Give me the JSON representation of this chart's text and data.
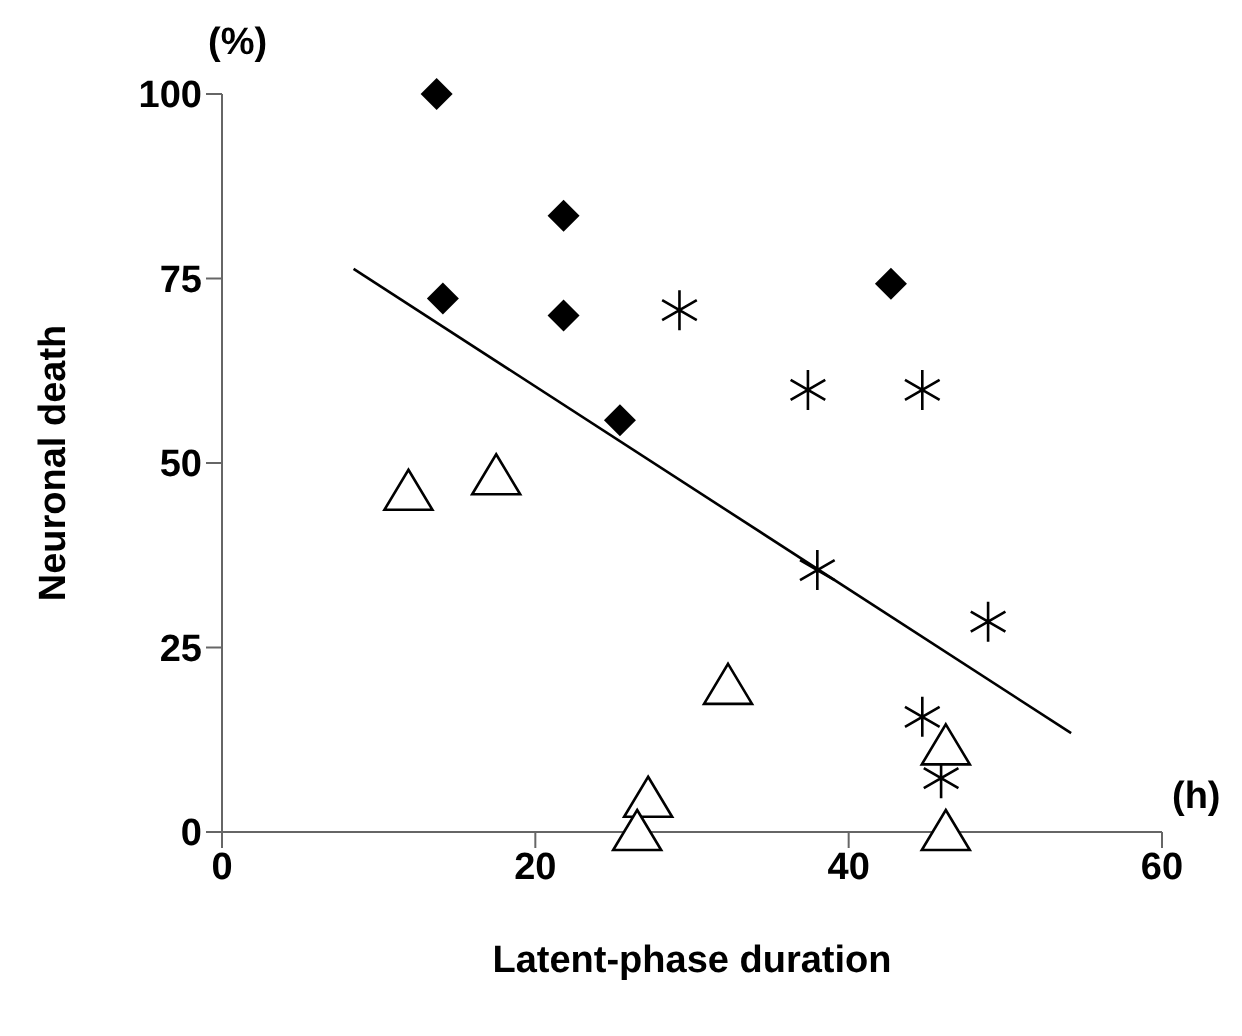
{
  "chart_data": {
    "type": "scatter",
    "xlabel": "Latent-phase duration",
    "ylabel": "Neuronal death",
    "annotations": [
      "(%)",
      "(h)"
    ],
    "xlim": [
      0,
      60
    ],
    "xticks": [
      0,
      20,
      40,
      60
    ],
    "ylim": [
      0,
      100
    ],
    "yticks": [
      0,
      25,
      50,
      75,
      100
    ],
    "grid": false,
    "legend": false,
    "series": [
      {
        "marker": "diamond",
        "color": "#000000",
        "x": [
          13.7,
          14.1,
          21.8,
          21.8,
          25.4,
          42.7
        ],
        "values": [
          100,
          72.3,
          83.5,
          70,
          55.8,
          74.3
        ]
      },
      {
        "marker": "cross",
        "color": "#000000",
        "x": [
          29.2,
          37.4,
          44.7,
          38,
          48.9,
          44.7,
          45.9
        ],
        "values": [
          70.7,
          59.9,
          59.9,
          35.5,
          28.5,
          15.6,
          7.3
        ]
      },
      {
        "marker": "triangle",
        "color": "#000000",
        "x": [
          11.9,
          17.5,
          32.3,
          27.2,
          26.5,
          46.2,
          46.2
        ],
        "values": [
          46.1,
          48.2,
          19.8,
          4.5,
          0,
          11.6,
          0
        ]
      },
      {
        "type": "line",
        "marker": "none",
        "line_style": "solid",
        "color": "#000000",
        "x": [
          8.4,
          54.2
        ],
        "values": [
          76.3,
          13.4
        ]
      }
    ]
  }
}
